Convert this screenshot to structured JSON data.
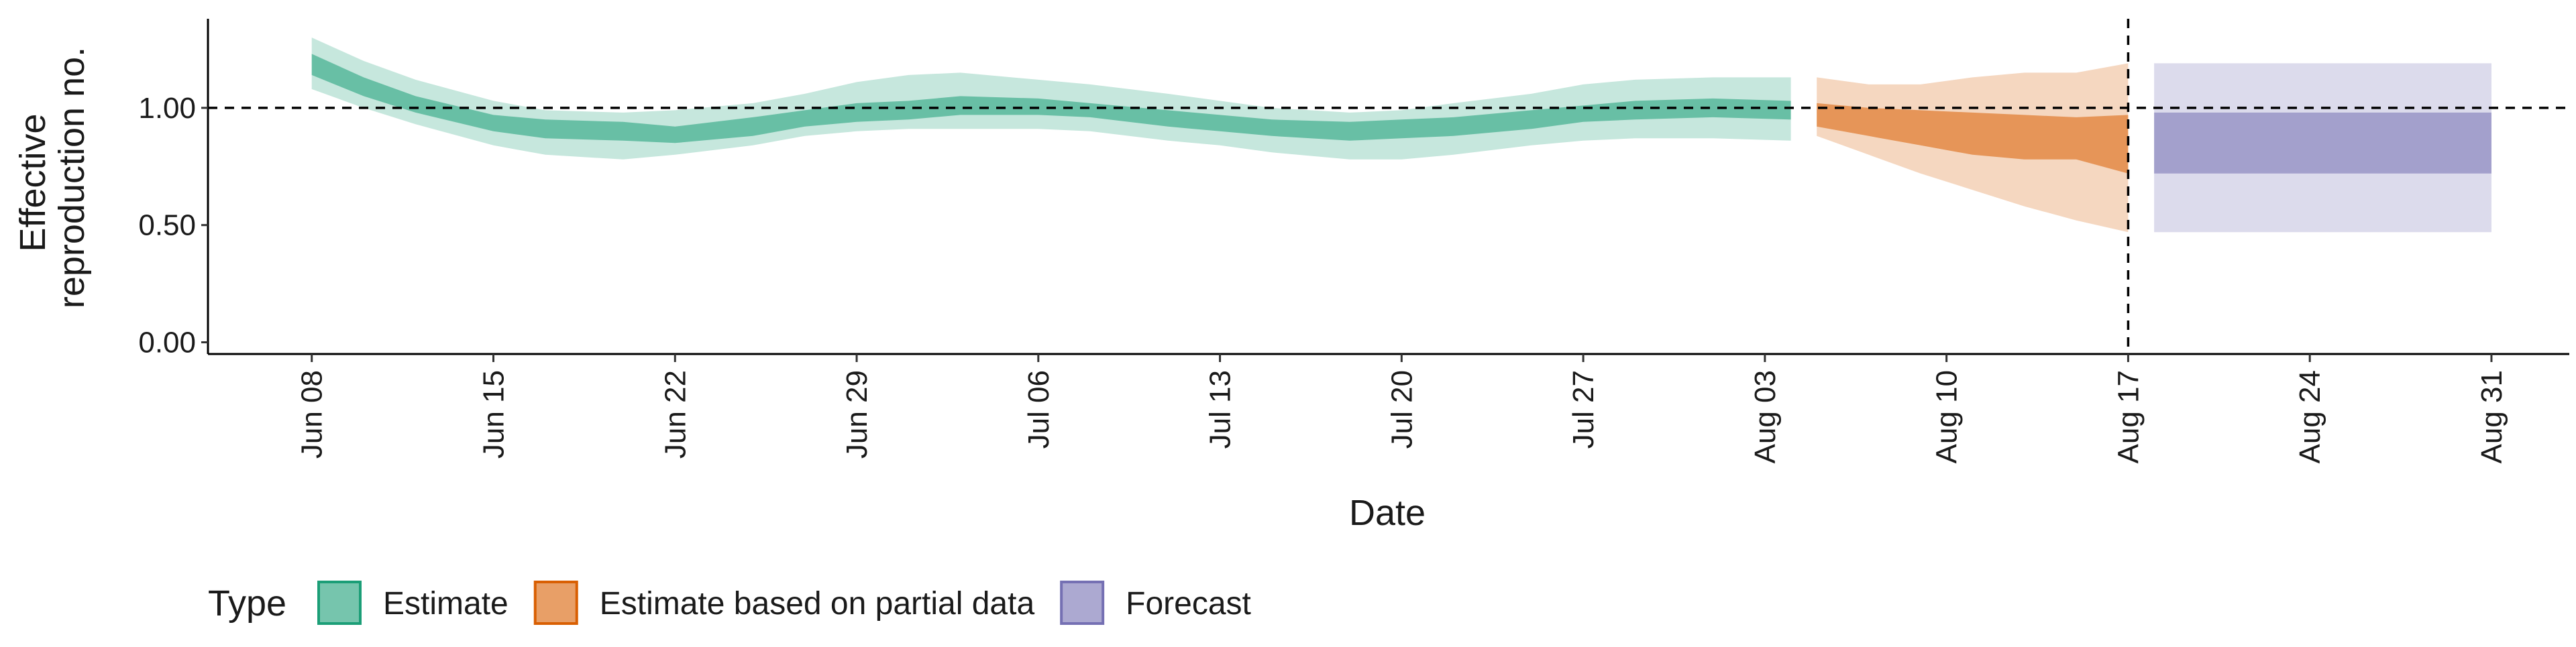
{
  "chart_data": {
    "type": "area",
    "xlabel": "Date",
    "ylabel_lines": [
      "Effective",
      "reproduction no."
    ],
    "x_ticks": [
      "2020-06-08",
      "2020-06-15",
      "2020-06-22",
      "2020-06-29",
      "2020-07-06",
      "2020-07-13",
      "2020-07-20",
      "2020-07-27",
      "2020-08-03",
      "2020-08-10",
      "2020-08-17",
      "2020-08-24",
      "2020-08-31"
    ],
    "x_tick_labels": [
      "Jun 08",
      "Jun 15",
      "Jun 22",
      "Jun 29",
      "Jul 06",
      "Jul 13",
      "Jul 20",
      "Jul 27",
      "Aug 03",
      "Aug 10",
      "Aug 17",
      "Aug 24",
      "Aug 31"
    ],
    "y_ticks": [
      0.0,
      0.5,
      1.0
    ],
    "y_tick_labels": [
      "0.00",
      "0.50",
      "1.00"
    ],
    "xlim": [
      "2020-06-04",
      "2020-09-03"
    ],
    "ylim": [
      -0.05,
      1.38
    ],
    "reference_lines": {
      "horizontal_y": 1.0,
      "vertical_x": "2020-08-17"
    },
    "grid": false,
    "legend": {
      "title": "Type",
      "position": "bottom-left",
      "entries": [
        "Estimate",
        "Estimate based on partial data",
        "Forecast"
      ]
    },
    "colors": {
      "Estimate": "#1b9e77",
      "Estimate based on partial data": "#d95f02",
      "Forecast": "#7570b3"
    },
    "series": [
      {
        "name": "Estimate",
        "x": [
          "2020-06-08",
          "2020-06-10",
          "2020-06-12",
          "2020-06-15",
          "2020-06-17",
          "2020-06-20",
          "2020-06-22",
          "2020-06-25",
          "2020-06-27",
          "2020-06-29",
          "2020-07-01",
          "2020-07-03",
          "2020-07-06",
          "2020-07-08",
          "2020-07-11",
          "2020-07-13",
          "2020-07-15",
          "2020-07-18",
          "2020-07-20",
          "2020-07-22",
          "2020-07-25",
          "2020-07-27",
          "2020-07-29",
          "2020-08-01",
          "2020-08-04"
        ],
        "lower_90": [
          1.08,
          1.0,
          0.93,
          0.84,
          0.8,
          0.78,
          0.8,
          0.84,
          0.88,
          0.9,
          0.91,
          0.91,
          0.91,
          0.9,
          0.86,
          0.84,
          0.81,
          0.78,
          0.78,
          0.8,
          0.84,
          0.86,
          0.87,
          0.87,
          0.86
        ],
        "upper_90": [
          1.3,
          1.2,
          1.12,
          1.03,
          0.99,
          0.98,
          0.99,
          1.02,
          1.06,
          1.11,
          1.14,
          1.15,
          1.12,
          1.1,
          1.06,
          1.03,
          1.0,
          0.98,
          0.99,
          1.02,
          1.06,
          1.1,
          1.12,
          1.13,
          1.13
        ],
        "lower_50": [
          1.14,
          1.05,
          0.98,
          0.9,
          0.87,
          0.86,
          0.85,
          0.88,
          0.92,
          0.94,
          0.95,
          0.97,
          0.97,
          0.96,
          0.92,
          0.9,
          0.88,
          0.86,
          0.87,
          0.88,
          0.91,
          0.94,
          0.95,
          0.96,
          0.95
        ],
        "upper_50": [
          1.23,
          1.13,
          1.05,
          0.97,
          0.95,
          0.94,
          0.92,
          0.96,
          0.99,
          1.02,
          1.03,
          1.05,
          1.04,
          1.02,
          0.99,
          0.97,
          0.95,
          0.94,
          0.95,
          0.96,
          0.99,
          1.01,
          1.03,
          1.04,
          1.03
        ]
      },
      {
        "name": "Estimate based on partial data",
        "x": [
          "2020-08-05",
          "2020-08-07",
          "2020-08-09",
          "2020-08-11",
          "2020-08-13",
          "2020-08-15",
          "2020-08-17"
        ],
        "lower_90": [
          0.88,
          0.8,
          0.72,
          0.65,
          0.58,
          0.52,
          0.47
        ],
        "upper_90": [
          1.13,
          1.1,
          1.1,
          1.13,
          1.15,
          1.15,
          1.19
        ],
        "lower_50": [
          0.92,
          0.88,
          0.84,
          0.8,
          0.78,
          0.78,
          0.72
        ],
        "upper_50": [
          1.02,
          1.0,
          0.99,
          0.98,
          0.97,
          0.96,
          0.97
        ]
      },
      {
        "name": "Forecast",
        "x": [
          "2020-08-18",
          "2020-08-31"
        ],
        "lower_90": [
          0.47,
          0.47
        ],
        "upper_90": [
          1.19,
          1.19
        ],
        "lower_50": [
          0.72,
          0.72
        ],
        "upper_50": [
          0.98,
          0.98
        ]
      }
    ]
  }
}
